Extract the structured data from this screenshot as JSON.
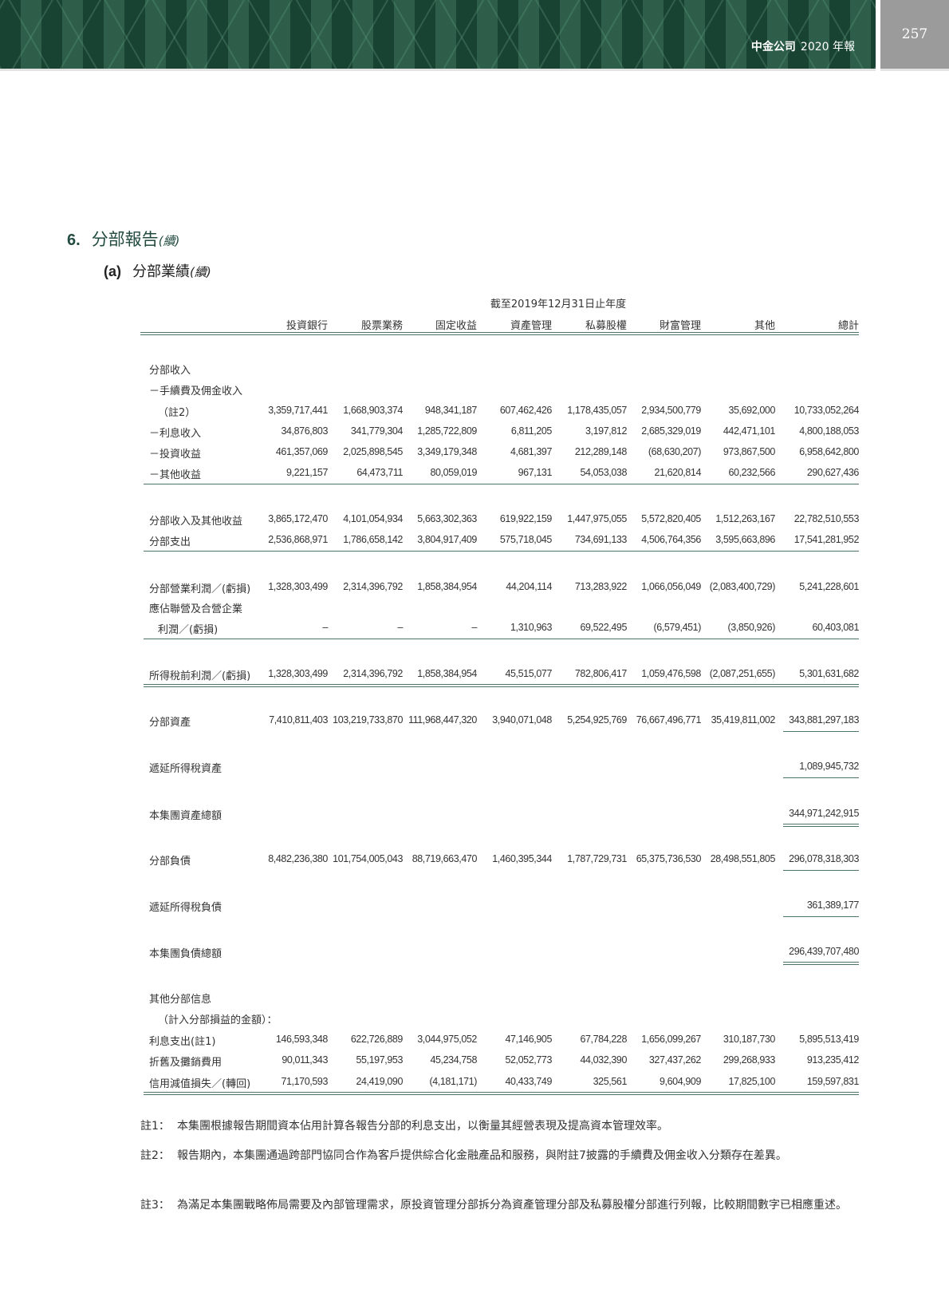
{
  "header": {
    "company": "中金公司",
    "year": "2020",
    "report": "年報",
    "page_number": "257"
  },
  "section": {
    "number": "6.",
    "title": "分部報告",
    "cont": "(續)"
  },
  "subsection": {
    "number": "(a)",
    "title": "分部業績",
    "cont": "(續)"
  },
  "table": {
    "period": "截至2019年12月31日止年度",
    "columns": [
      "投資銀行",
      "股票業務",
      "固定收益",
      "資產管理",
      "私募股權",
      "財富管理",
      "其他",
      "總計"
    ],
    "rows": [
      {
        "label": "分部收入",
        "values": []
      },
      {
        "label": "－手續費及佣金收入",
        "values": []
      },
      {
        "label": "（註2）",
        "values": [
          "3,359,717,441",
          "1,668,903,374",
          "948,341,187",
          "607,462,426",
          "1,178,435,057",
          "2,934,500,779",
          "35,692,000",
          "10,733,052,264"
        ]
      },
      {
        "label": "－利息收入",
        "values": [
          "34,876,803",
          "341,779,304",
          "1,285,722,809",
          "6,811,205",
          "3,197,812",
          "2,685,329,019",
          "442,471,101",
          "4,800,188,053"
        ]
      },
      {
        "label": "－投資收益",
        "values": [
          "461,357,069",
          "2,025,898,545",
          "3,349,179,348",
          "4,681,397",
          "212,289,148",
          "(68,630,207)",
          "973,867,500",
          "6,958,642,800"
        ]
      },
      {
        "label": "－其他收益",
        "values": [
          "9,221,157",
          "64,473,711",
          "80,059,019",
          "967,131",
          "54,053,038",
          "21,620,814",
          "60,232,566",
          "290,627,436"
        ]
      },
      {
        "label": "分部收入及其他收益",
        "values": [
          "3,865,172,470",
          "4,101,054,934",
          "5,663,302,363",
          "619,922,159",
          "1,447,975,055",
          "5,572,820,405",
          "1,512,263,167",
          "22,782,510,553"
        ]
      },
      {
        "label": "分部支出",
        "values": [
          "2,536,868,971",
          "1,786,658,142",
          "3,804,917,409",
          "575,718,045",
          "734,691,133",
          "4,506,764,356",
          "3,595,663,896",
          "17,541,281,952"
        ]
      },
      {
        "label": "分部營業利潤／(虧損)",
        "values": [
          "1,328,303,499",
          "2,314,396,792",
          "1,858,384,954",
          "44,204,114",
          "713,283,922",
          "1,066,056,049",
          "(2,083,400,729)",
          "5,241,228,601"
        ]
      },
      {
        "label": "應佔聯營及合營企業",
        "values": []
      },
      {
        "label": "利潤／(虧損)",
        "values": [
          "–",
          "–",
          "–",
          "1,310,963",
          "69,522,495",
          "(6,579,451)",
          "(3,850,926)",
          "60,403,081"
        ]
      },
      {
        "label": "所得稅前利潤／(虧損)",
        "values": [
          "1,328,303,499",
          "2,314,396,792",
          "1,858,384,954",
          "45,515,077",
          "782,806,417",
          "1,059,476,598",
          "(2,087,251,655)",
          "5,301,631,682"
        ]
      },
      {
        "label": "分部資產",
        "values": [
          "7,410,811,403",
          "103,219,733,870",
          "111,968,447,320",
          "3,940,071,048",
          "5,254,925,769",
          "76,667,496,771",
          "35,419,811,002",
          "343,881,297,183"
        ]
      },
      {
        "label": "遞延所得稅資產",
        "values": [
          "",
          "",
          "",
          "",
          "",
          "",
          "",
          "1,089,945,732"
        ]
      },
      {
        "label": "本集團資產總額",
        "values": [
          "",
          "",
          "",
          "",
          "",
          "",
          "",
          "344,971,242,915"
        ]
      },
      {
        "label": "分部負債",
        "values": [
          "8,482,236,380",
          "101,754,005,043",
          "88,719,663,470",
          "1,460,395,344",
          "1,787,729,731",
          "65,375,736,530",
          "28,498,551,805",
          "296,078,318,303"
        ]
      },
      {
        "label": "遞延所得稅負債",
        "values": [
          "",
          "",
          "",
          "",
          "",
          "",
          "",
          "361,389,177"
        ]
      },
      {
        "label": "本集團負債總額",
        "values": [
          "",
          "",
          "",
          "",
          "",
          "",
          "",
          "296,439,707,480"
        ]
      },
      {
        "label": "其他分部信息",
        "values": []
      },
      {
        "label": "（計入分部損益的金額）：",
        "values": []
      },
      {
        "label": "利息支出(註1)",
        "values": [
          "146,593,348",
          "622,726,889",
          "3,044,975,052",
          "47,146,905",
          "67,784,228",
          "1,656,099,267",
          "310,187,730",
          "5,895,513,419"
        ]
      },
      {
        "label": "折舊及攤銷費用",
        "values": [
          "90,011,343",
          "55,197,953",
          "45,234,758",
          "52,052,773",
          "44,032,390",
          "327,437,262",
          "299,268,933",
          "913,235,412"
        ]
      },
      {
        "label": "信用減值損失／(轉回)",
        "values": [
          "71,170,593",
          "24,419,090",
          "(4,181,171)",
          "40,433,749",
          "325,561",
          "9,604,909",
          "17,825,100",
          "159,597,831"
        ]
      }
    ]
  },
  "notes": [
    {
      "key": "註1：",
      "text": "本集團根據報告期間資本佔用計算各報告分部的利息支出，以衡量其經營表現及提高資本管理效率。"
    },
    {
      "key": "註2：",
      "text": "報告期內，本集團通過跨部門協同合作為客戶提供綜合化金融產品和服務，與附註7披露的手續費及佣金收入分類存在差異。"
    },
    {
      "key": "註3：",
      "text": "為滿足本集團戰略佈局需要及內部管理需求，原投資管理分部拆分為資產管理分部及私募股權分部進行列報，比較期間數字已相應重述。"
    }
  ]
}
